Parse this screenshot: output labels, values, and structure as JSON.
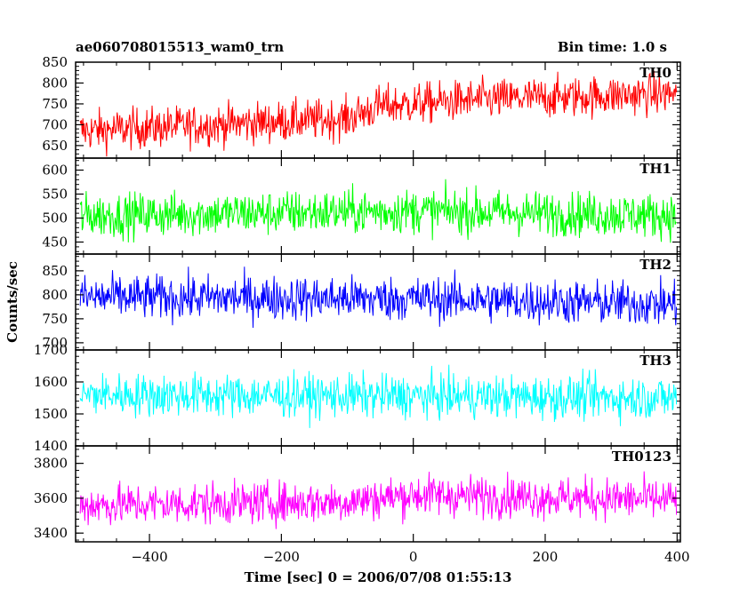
{
  "header": {
    "title": "ae060708015513_wam0_trn",
    "bin_time": "Bin time: 1.0 s"
  },
  "chart_data": {
    "type": "line",
    "xlabel": "Time [sec] 0 = 2006/07/08 01:55:13",
    "ylabel": "Counts/sec",
    "xlim": [
      -512,
      405
    ],
    "x_ticks": [
      -400,
      -200,
      0,
      200,
      400
    ],
    "grid": false,
    "panels": [
      {
        "name": "TH0",
        "color": "#ff0000",
        "ylim": [
          620,
          850
        ],
        "y_ticks": [
          650,
          700,
          750,
          800,
          850
        ],
        "trend": [
          [
            -505,
            685
          ],
          [
            -300,
            700
          ],
          [
            -100,
            715
          ],
          [
            -50,
            745
          ],
          [
            100,
            760
          ],
          [
            400,
            775
          ]
        ],
        "noise_amplitude": 35
      },
      {
        "name": "TH1",
        "color": "#00ff00",
        "ylim": [
          425,
          625
        ],
        "y_ticks": [
          450,
          500,
          550,
          600
        ],
        "trend": [
          [
            -505,
            505
          ],
          [
            0,
            515
          ],
          [
            400,
            505
          ]
        ],
        "noise_amplitude": 33
      },
      {
        "name": "TH2",
        "color": "#0000ff",
        "ylim": [
          685,
          885
        ],
        "y_ticks": [
          700,
          750,
          800,
          850
        ],
        "trend": [
          [
            -505,
            795
          ],
          [
            0,
            792
          ],
          [
            400,
            780
          ]
        ],
        "noise_amplitude": 33
      },
      {
        "name": "TH3",
        "color": "#00ffff",
        "ylim": [
          1400,
          1700
        ],
        "y_ticks": [
          1400,
          1500,
          1600,
          1700
        ],
        "trend": [
          [
            -505,
            1560
          ],
          [
            0,
            1555
          ],
          [
            400,
            1550
          ]
        ],
        "noise_amplitude": 48
      },
      {
        "name": "TH0123",
        "color": "#ff00ff",
        "ylim": [
          3350,
          3900
        ],
        "y_ticks": [
          3400,
          3600,
          3800
        ],
        "trend": [
          [
            -505,
            3560
          ],
          [
            -100,
            3580
          ],
          [
            0,
            3620
          ],
          [
            400,
            3590
          ]
        ],
        "noise_amplitude": 85
      }
    ]
  }
}
